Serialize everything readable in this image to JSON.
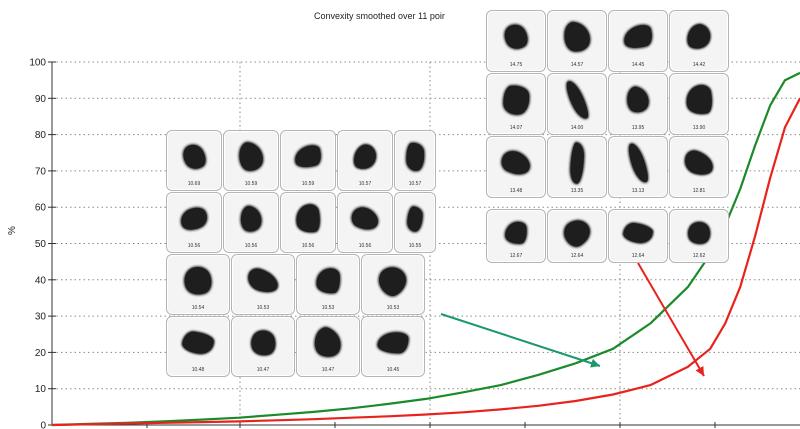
{
  "chart_data": {
    "type": "line",
    "title": "Convexity smoothed over 11 poir",
    "xlabel": "",
    "ylabel": "%",
    "ylim": [
      0,
      100
    ],
    "y_ticks": [
      "0",
      "10",
      "20",
      "30",
      "40",
      "50",
      "60",
      "70",
      "80",
      "90",
      "100"
    ],
    "grid": true,
    "x": [
      0,
      5,
      10,
      15,
      20,
      25,
      30,
      35,
      40,
      45,
      50,
      55,
      60,
      65,
      70,
      75,
      80,
      85,
      88,
      90,
      92,
      94,
      96,
      98,
      100
    ],
    "series": [
      {
        "color": "#1a8a2a",
        "values": [
          0,
          0.3,
          0.6,
          1,
          1.5,
          2,
          2.8,
          3.6,
          4.6,
          5.8,
          7.2,
          9,
          11,
          13.8,
          17,
          21,
          28,
          38,
          47,
          55,
          65,
          77,
          88,
          95,
          97
        ]
      },
      {
        "color": "#e8231e",
        "values": [
          0,
          0.2,
          0.4,
          0.6,
          0.8,
          1,
          1.3,
          1.6,
          2,
          2.4,
          2.9,
          3.5,
          4.3,
          5.3,
          6.6,
          8.4,
          11,
          16,
          21,
          28,
          38,
          52,
          68,
          82,
          90
        ]
      }
    ],
    "annotations": [
      {
        "type": "arrow",
        "color": "#1a9a6a"
      },
      {
        "type": "arrow",
        "color": "#e8231e"
      }
    ]
  },
  "panels": {
    "low_convexity": {
      "labels": [
        "10.69",
        "10.59",
        "10.59",
        "10.57",
        "10.57",
        "10.56",
        "10.56",
        "10.56",
        "10.56",
        "10.55",
        "10.54",
        "10.53",
        "10.53",
        "10.53",
        "10.48",
        "10.47",
        "10.47",
        "10.45"
      ]
    },
    "high_convexity": {
      "labels": [
        "14.75",
        "14.57",
        "14.45",
        "14.42",
        "14.07",
        "14.00",
        "13.95",
        "13.90",
        "13.48",
        "13.35",
        "13.13",
        "12.81",
        "12.67",
        "12.64",
        "12.64",
        "12.62"
      ]
    }
  }
}
